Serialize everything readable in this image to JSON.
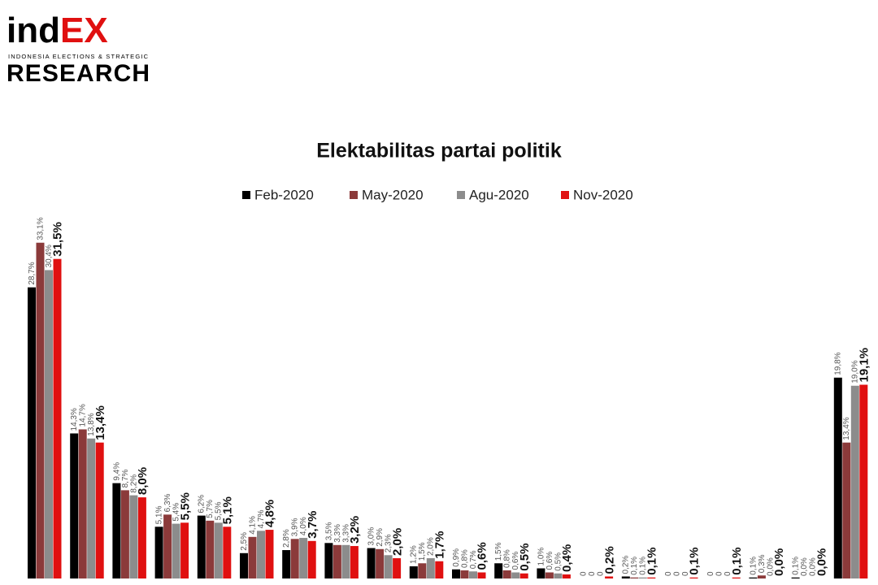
{
  "logo": {
    "brand_main": "ind",
    "brand_accent": "EX",
    "tagline": "INDONESIA ELECTIONS & STRATEGIC",
    "research": "RESEARCH"
  },
  "chart_data": {
    "type": "bar",
    "title": "Elektabilitas partai politik",
    "legend": "top",
    "grid": false,
    "categories": [
      null,
      null,
      null,
      null,
      null,
      null,
      null,
      null,
      null,
      null,
      null,
      null,
      null,
      null,
      null,
      null,
      null,
      null,
      null,
      null
    ],
    "ylim": [
      0,
      35
    ],
    "series": [
      {
        "name": "Feb-2020",
        "color": "#000000",
        "values": [
          28.7,
          14.3,
          9.4,
          5.1,
          6.2,
          2.5,
          2.8,
          3.5,
          3.0,
          1.2,
          0.9,
          1.5,
          1.0,
          0,
          0.2,
          0,
          0,
          0.1,
          0.1,
          19.8
        ],
        "value_labels": [
          "28,7%",
          "14,3%",
          "9,4%",
          "5,1%",
          "6,2%",
          "2,5%",
          "2,8%",
          "3,5%",
          "3,0%",
          "1,2%",
          "0,9%",
          "1,5%",
          "1,0%",
          "0",
          "0,2%",
          "0",
          "0",
          "0,1%",
          "0,1%",
          "19,8%"
        ]
      },
      {
        "name": "May-2020",
        "color": "#8b3a3a",
        "values": [
          33.1,
          14.7,
          8.7,
          6.3,
          5.7,
          4.1,
          3.9,
          3.3,
          2.9,
          1.5,
          0.8,
          0.8,
          0.6,
          0,
          0.1,
          0,
          0,
          0.3,
          0.0,
          13.4
        ],
        "value_labels": [
          "33,1%",
          "14,7%",
          "8,7%",
          "6,3%",
          "5,7%",
          "4,1%",
          "3,9%",
          "3,3%",
          "2,9%",
          "1,5%",
          "0,8%",
          "0,8%",
          "0,6%",
          "0",
          "0,1%",
          "0",
          "0",
          "0,3%",
          "0,0%",
          "13,4%"
        ]
      },
      {
        "name": "Agu-2020",
        "color": "#8c8c8c",
        "values": [
          30.4,
          13.8,
          8.2,
          5.4,
          5.5,
          4.7,
          4.0,
          3.3,
          2.3,
          2.0,
          0.7,
          0.6,
          0.5,
          0,
          0.1,
          0,
          0,
          0.0,
          0.0,
          19.0
        ],
        "value_labels": [
          "30,4%",
          "13,8%",
          "8,2%",
          "5,4%",
          "5,5%",
          "4,7%",
          "4,0%",
          "3,3%",
          "2,3%",
          "2,0%",
          "0,7%",
          "0,6%",
          "0,5%",
          "0",
          "0,1%",
          "0",
          "0",
          "0,0%",
          "0,0%",
          "19,0%"
        ]
      },
      {
        "name": "Nov-2020",
        "color": "#e01010",
        "values": [
          31.5,
          13.4,
          8.0,
          5.5,
          5.1,
          4.8,
          3.7,
          3.2,
          2.0,
          1.7,
          0.6,
          0.5,
          0.4,
          0.2,
          0.1,
          0.1,
          0.1,
          0.0,
          0.0,
          19.1
        ],
        "value_labels": [
          "31,5%",
          "13,4%",
          "8,0%",
          "5,5%",
          "5,1%",
          "4,8%",
          "3,7%",
          "3,2%",
          "2,0%",
          "1,7%",
          "0,6%",
          "0,5%",
          "0,4%",
          "0,2%",
          "0,1%",
          "0,1%",
          "0,1%",
          "0,0%",
          "0,0%",
          "19,1%"
        ]
      }
    ]
  }
}
